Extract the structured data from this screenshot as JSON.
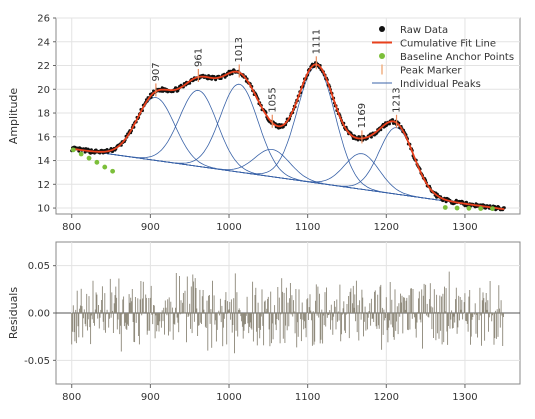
{
  "chart_data": [
    {
      "type": "line",
      "panel": "peak-fit",
      "title": "",
      "xlabel": "",
      "ylabel": "Amplitude",
      "xlim": [
        780,
        1370
      ],
      "ylim": [
        9.5,
        26
      ],
      "xticks": [
        800,
        900,
        1000,
        1100,
        1200,
        1300
      ],
      "yticks": [
        10,
        12,
        14,
        16,
        18,
        20,
        22,
        24,
        26
      ],
      "grid": true,
      "legend_position": "top-right",
      "legend": [
        {
          "label": "Raw Data",
          "marker": "dot",
          "color": "#111111"
        },
        {
          "label": "Cumulative Fit Line",
          "marker": "line",
          "color": "#e8401c"
        },
        {
          "label": "Baseline Anchor Points",
          "marker": "dot",
          "color": "#7cbf3a"
        },
        {
          "label": "Peak Marker",
          "marker": "bar",
          "color": "#f0b184"
        },
        {
          "label": "Individual Peaks",
          "marker": "line",
          "color": "#3a63a8"
        }
      ],
      "baseline": {
        "start": [
          800,
          15.0
        ],
        "end": [
          1350,
          9.9
        ]
      },
      "anchor_points": [
        {
          "x": 802,
          "y": 14.9
        },
        {
          "x": 812,
          "y": 14.55
        },
        {
          "x": 822,
          "y": 14.2
        },
        {
          "x": 832,
          "y": 13.85
        },
        {
          "x": 842,
          "y": 13.45
        },
        {
          "x": 852,
          "y": 13.1
        },
        {
          "x": 1275,
          "y": 10.05
        },
        {
          "x": 1290,
          "y": 10.0
        },
        {
          "x": 1305,
          "y": 9.98
        },
        {
          "x": 1320,
          "y": 9.96
        },
        {
          "x": 1335,
          "y": 9.95
        }
      ],
      "peaks": [
        {
          "label": "907",
          "center": 907,
          "height": 5.3,
          "width": 24
        },
        {
          "label": "961",
          "center": 961,
          "height": 6.4,
          "width": 24
        },
        {
          "label": "1013",
          "center": 1013,
          "height": 7.4,
          "width": 24
        },
        {
          "label": "1055",
          "center": 1055,
          "height": 2.3,
          "width": 22
        },
        {
          "label": "1111",
          "center": 1111,
          "height": 9.8,
          "width": 24
        },
        {
          "label": "1169",
          "center": 1169,
          "height": 3.0,
          "width": 22
        },
        {
          "label": "1213",
          "center": 1213,
          "height": 5.6,
          "width": 22
        }
      ]
    },
    {
      "type": "bar",
      "panel": "residuals",
      "title": "",
      "xlabel": "",
      "ylabel": "Residuals",
      "xlim": [
        780,
        1370
      ],
      "ylim": [
        -0.075,
        0.075
      ],
      "xticks": [
        800,
        900,
        1000,
        1100,
        1200,
        1300
      ],
      "yticks": [
        -0.05,
        0.0,
        0.05
      ],
      "ytick_labels": [
        "-0.05",
        "0.00",
        "0.05"
      ],
      "grid": true,
      "color": "#8c8778",
      "x_start": 800,
      "x_step": 1,
      "count": 550,
      "amplitude": 0.045,
      "seed": 7
    }
  ]
}
